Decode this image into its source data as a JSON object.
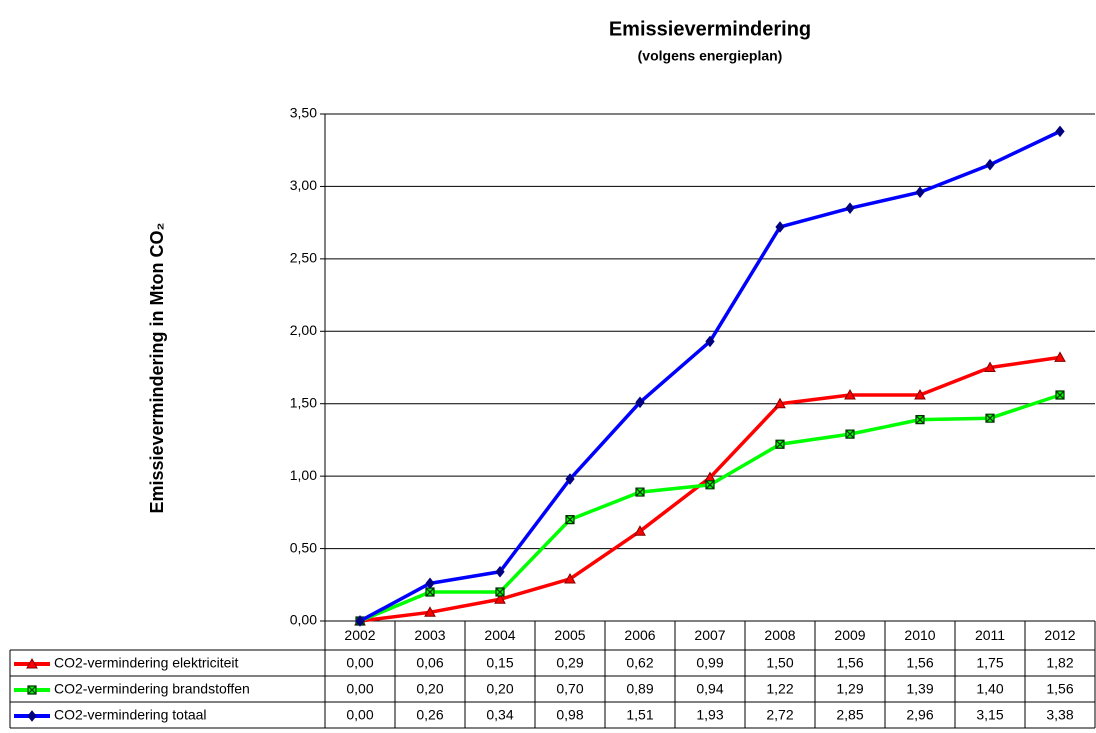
{
  "chart_data": {
    "type": "line",
    "title": "Emissievermindering",
    "subtitle": "(volgens energieplan)",
    "y_label": "Emissievermindering in Mton CO₂",
    "categories": [
      "2002",
      "2003",
      "2004",
      "2005",
      "2006",
      "2007",
      "2008",
      "2009",
      "2010",
      "2011",
      "2012"
    ],
    "series": [
      {
        "name": "CO2-vermindering elektriciteit",
        "color": "#ff0000",
        "marker": "triangle",
        "values": [
          0.0,
          0.06,
          0.15,
          0.29,
          0.62,
          0.99,
          1.5,
          1.56,
          1.56,
          1.75,
          1.82
        ],
        "value_labels": [
          "0,00",
          "0,06",
          "0,15",
          "0,29",
          "0,62",
          "0,99",
          "1,50",
          "1,56",
          "1,56",
          "1,75",
          "1,82"
        ]
      },
      {
        "name": "CO2-vermindering brandstoffen",
        "color": "#00ff00",
        "marker": "square",
        "values": [
          0.0,
          0.2,
          0.2,
          0.7,
          0.89,
          0.94,
          1.22,
          1.29,
          1.39,
          1.4,
          1.56
        ],
        "value_labels": [
          "0,00",
          "0,20",
          "0,20",
          "0,70",
          "0,89",
          "0,94",
          "1,22",
          "1,29",
          "1,39",
          "1,40",
          "1,56"
        ]
      },
      {
        "name": "CO2-vermindering totaal",
        "color": "#0000ff",
        "marker": "diamond",
        "values": [
          0.0,
          0.26,
          0.34,
          0.98,
          1.51,
          1.93,
          2.72,
          2.85,
          2.96,
          3.15,
          3.38
        ],
        "value_labels": [
          "0,00",
          "0,26",
          "0,34",
          "0,98",
          "1,51",
          "1,93",
          "2,72",
          "2,85",
          "2,96",
          "3,15",
          "3,38"
        ]
      }
    ],
    "ylim": [
      0,
      3.5
    ],
    "yticks": [
      {
        "value": 0,
        "label": "0,00"
      },
      {
        "value": 0.5,
        "label": "0,50"
      },
      {
        "value": 1,
        "label": "1,00"
      },
      {
        "value": 1.5,
        "label": "1,50"
      },
      {
        "value": 2,
        "label": "2,00"
      },
      {
        "value": 2.5,
        "label": "2,50"
      },
      {
        "value": 3,
        "label": "3,00"
      },
      {
        "value": 3.5,
        "label": "3,50"
      }
    ],
    "grid": true
  }
}
